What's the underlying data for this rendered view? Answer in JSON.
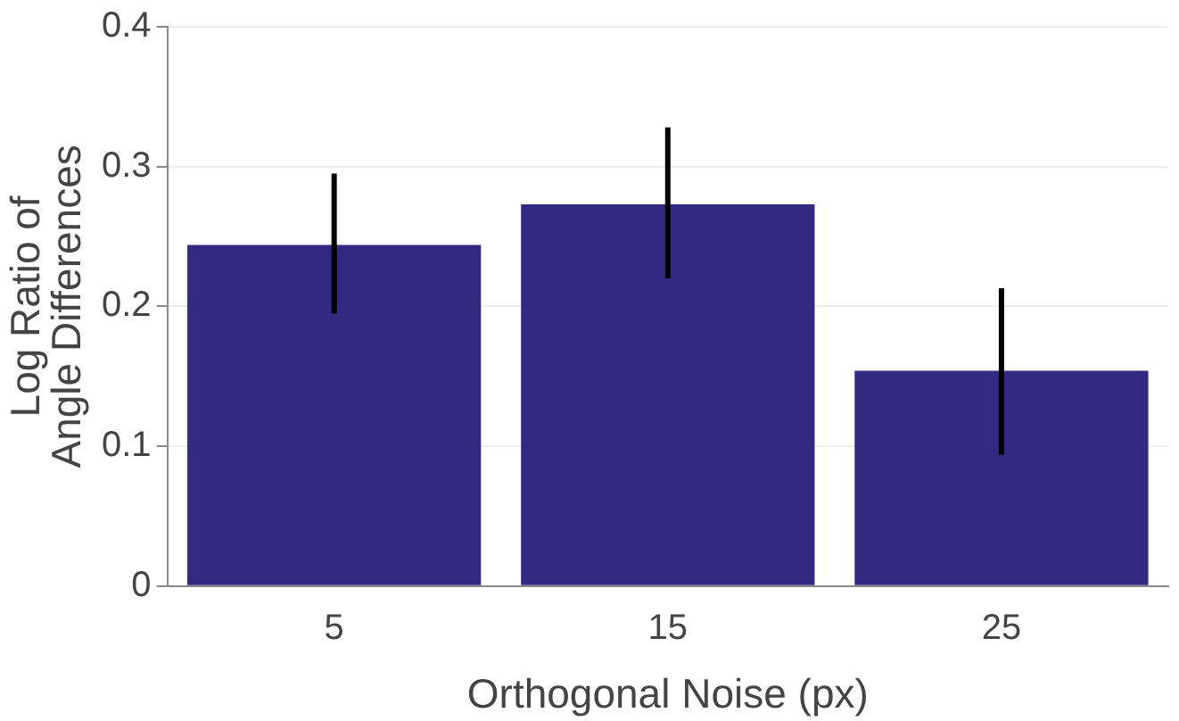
{
  "chart_data": {
    "type": "bar",
    "xlabel": "Orthogonal Noise (px)",
    "ylabel": "Log Ratio of\nAngle Differences",
    "categories": [
      "5",
      "15",
      "25"
    ],
    "values": [
      0.244,
      0.273,
      0.154
    ],
    "errors": [
      [
        0.195,
        0.295
      ],
      [
        0.22,
        0.328
      ],
      [
        0.094,
        0.213
      ]
    ],
    "color": "#322983",
    "ylim": [
      0,
      0.4
    ],
    "yticks": [
      0,
      0.1,
      0.2,
      0.3,
      0.4
    ],
    "grid": "y",
    "legend": false
  }
}
